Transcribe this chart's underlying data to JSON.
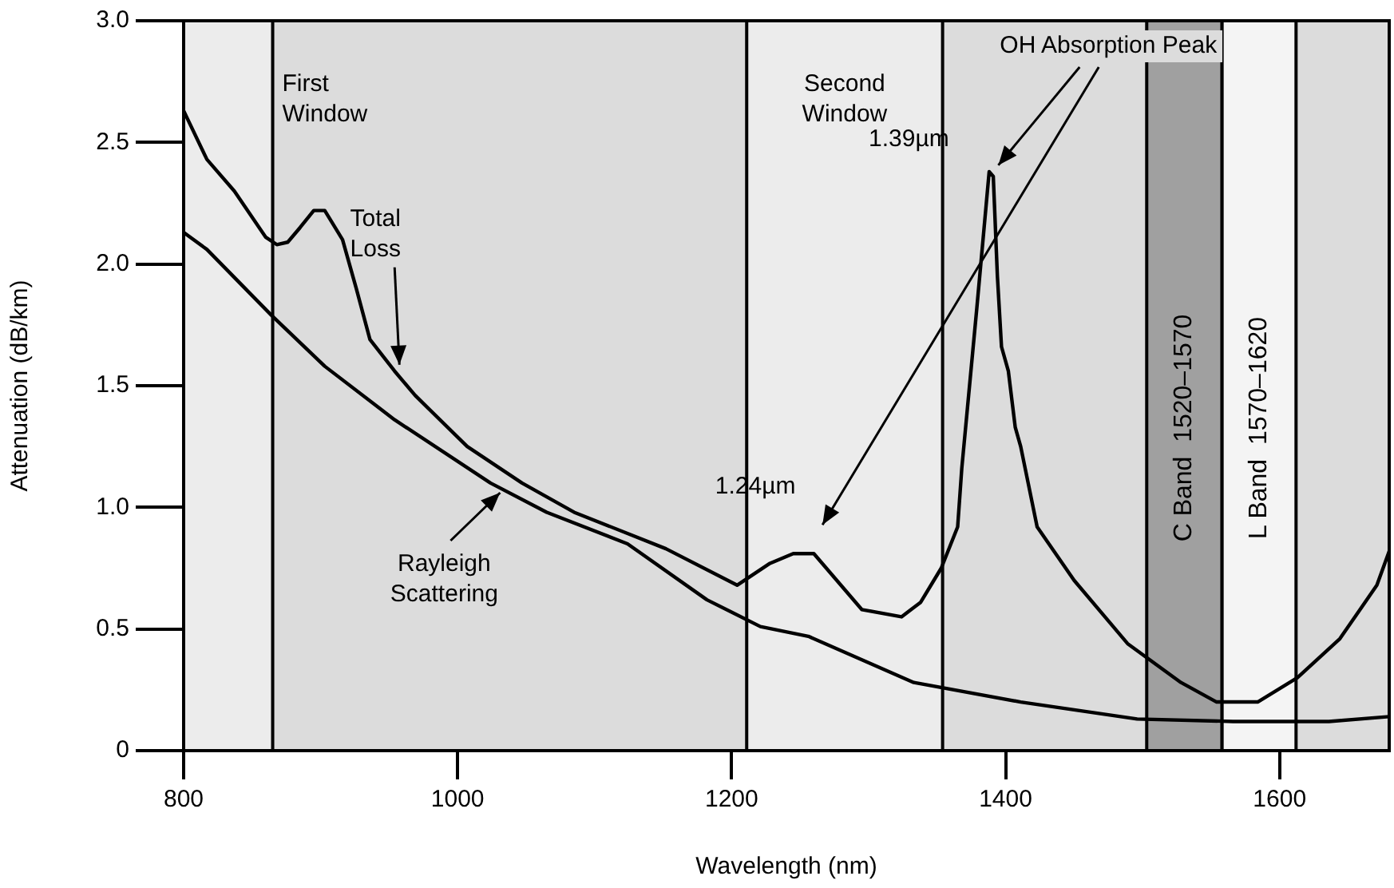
{
  "chart_data": {
    "type": "line",
    "xlabel": "Wavelength (nm)",
    "ylabel": "Attenuation (dB/km)",
    "xlim": [
      800,
      1680
    ],
    "xticks": [
      800,
      1000,
      1200,
      1400,
      1600
    ],
    "ylim": [
      0,
      3
    ],
    "yticks": [
      0,
      {
        "value": 0.5,
        "label": "0.5"
      },
      {
        "value": 1,
        "label": "1.0"
      },
      {
        "value": 1.5,
        "label": "1.5"
      },
      {
        "value": 2,
        "label": "2.0"
      },
      {
        "value": 2.5,
        "label": "2.5"
      },
      {
        "value": 3,
        "label": "3.0"
      }
    ],
    "grid": false,
    "legend": false,
    "marker": "none",
    "line_style": "solid",
    "series": [
      {
        "color": "#000000",
        "x": [
          800,
          817,
          837,
          860,
          868,
          876,
          885,
          895,
          903,
          916,
          926,
          936,
          954,
          969,
          1007,
          1047,
          1085,
          1152,
          1204,
          1228,
          1245,
          1260,
          1295,
          1324,
          1338,
          1353,
          1365,
          1368,
          1379,
          1388,
          1391,
          1394,
          1397,
          1402,
          1407,
          1411,
          1423,
          1450,
          1489,
          1528,
          1554,
          1584,
          1613,
          1644,
          1671,
          1680
        ],
        "values": [
          2.63,
          2.43,
          2.3,
          2.11,
          2.08,
          2.09,
          2.15,
          2.22,
          2.22,
          2.1,
          1.9,
          1.69,
          1.56,
          1.46,
          1.25,
          1.1,
          0.98,
          0.83,
          0.68,
          0.77,
          0.81,
          0.81,
          0.58,
          0.55,
          0.61,
          0.75,
          0.92,
          1.16,
          1.82,
          2.38,
          2.36,
          1.95,
          1.66,
          1.56,
          1.33,
          1.25,
          0.92,
          0.7,
          0.44,
          0.28,
          0.2,
          0.2,
          0.3,
          0.46,
          0.68,
          0.82
        ]
      },
      {
        "color": "#000000",
        "x": [
          800,
          817,
          864,
          903,
          954,
          1024,
          1065,
          1124,
          1182,
          1221,
          1256,
          1333,
          1411,
          1496,
          1566,
          1636,
          1680
        ],
        "values": [
          2.13,
          2.06,
          1.79,
          1.58,
          1.36,
          1.1,
          0.98,
          0.85,
          0.62,
          0.51,
          0.47,
          0.28,
          0.2,
          0.13,
          0.12,
          0.12,
          0.14
        ]
      }
    ],
    "bands": [
      {
        "axis": "x",
        "from": 800,
        "to": 865,
        "label": "First Window",
        "color": "#ececec"
      },
      {
        "axis": "x",
        "from": 1211,
        "to": 1354,
        "label": "Second Window",
        "color": "#ececec"
      },
      {
        "axis": "x",
        "from": 1503,
        "to": 1558,
        "label": "C Band  1520–1570",
        "color": "#a0a0a0"
      },
      {
        "axis": "x",
        "from": 1558,
        "to": 1612,
        "label": "L Band  1570–1620",
        "color": "#f4f4f4"
      }
    ],
    "annotations": [
      "OH Absorption Peak",
      {
        "text": "1.39µm",
        "x": 1390,
        "y": 2.38
      },
      {
        "text": "1.24µm",
        "x": 1250,
        "y": 0.81
      },
      {
        "text": "Total Loss",
        "x": 954,
        "y": 1.56
      },
      {
        "text": "Rayleigh Scattering",
        "x": 1031,
        "y": 1.08
      }
    ]
  }
}
